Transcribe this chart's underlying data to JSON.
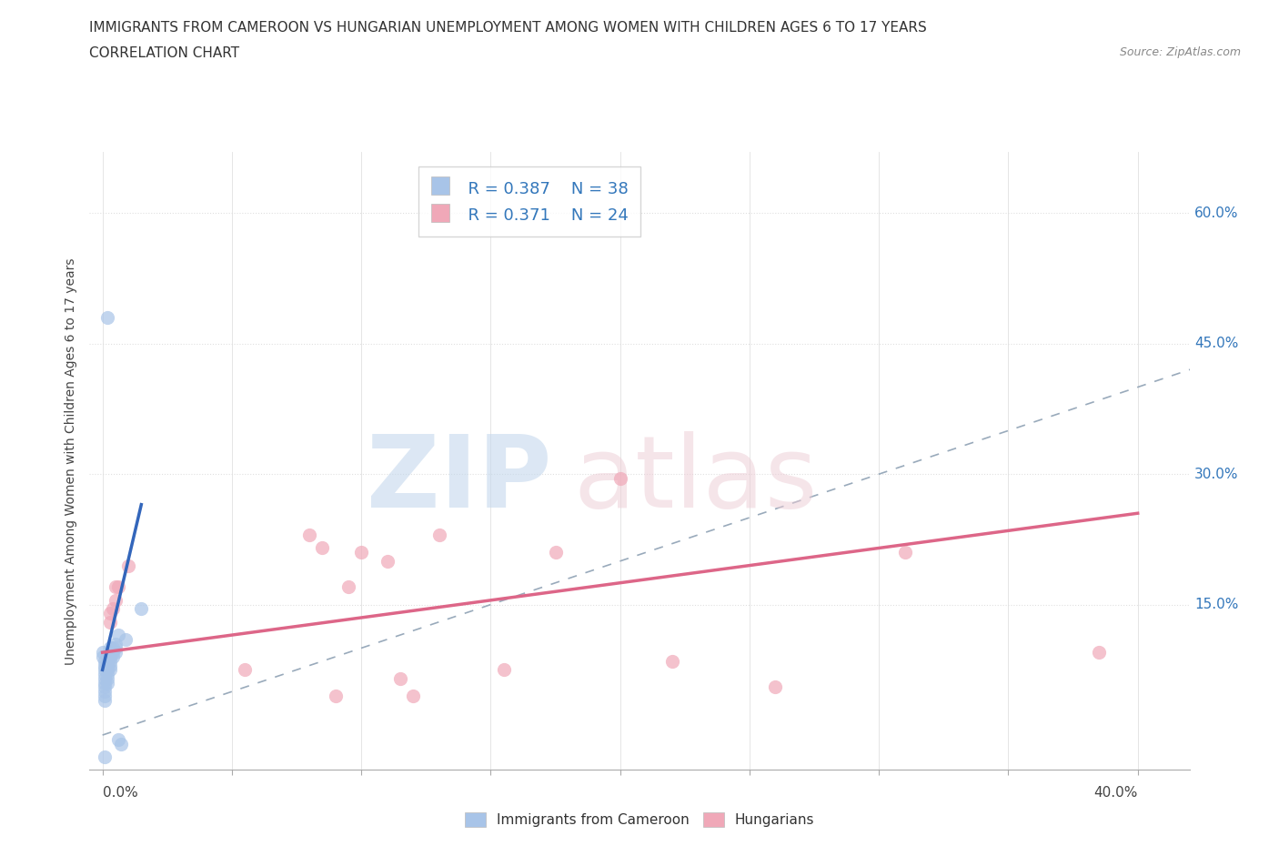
{
  "title_line1": "IMMIGRANTS FROM CAMEROON VS HUNGARIAN UNEMPLOYMENT AMONG WOMEN WITH CHILDREN AGES 6 TO 17 YEARS",
  "title_line2": "CORRELATION CHART",
  "source_text": "Source: ZipAtlas.com",
  "ylabel": "Unemployment Among Women with Children Ages 6 to 17 years",
  "xlim": [
    -0.005,
    0.42
  ],
  "ylim": [
    -0.04,
    0.67
  ],
  "xticks": [
    0.0,
    0.05,
    0.1,
    0.15,
    0.2,
    0.25,
    0.3,
    0.35,
    0.4
  ],
  "yticks_right": [
    0.0,
    0.15,
    0.3,
    0.45,
    0.6
  ],
  "ytick_labels_right": [
    "",
    "15.0%",
    "30.0%",
    "45.0%",
    "60.0%"
  ],
  "legend_R1": "R = 0.387",
  "legend_N1": "N = 38",
  "legend_R2": "R = 0.371",
  "legend_N2": "N = 24",
  "color_blue": "#a8c4e8",
  "color_pink": "#f0a8b8",
  "color_blue_text": "#3377bb",
  "line_blue_color": "#3366bb",
  "line_pink_color": "#dd6688",
  "diag_line_color": "#99aabb",
  "scatter_blue": [
    [
      0.0,
      0.095
    ],
    [
      0.0,
      0.09
    ],
    [
      0.001,
      0.085
    ],
    [
      0.001,
      0.08
    ],
    [
      0.001,
      0.075
    ],
    [
      0.001,
      0.07
    ],
    [
      0.001,
      0.065
    ],
    [
      0.001,
      0.06
    ],
    [
      0.001,
      0.055
    ],
    [
      0.001,
      0.05
    ],
    [
      0.001,
      0.045
    ],
    [
      0.001,
      0.04
    ],
    [
      0.002,
      0.09
    ],
    [
      0.002,
      0.085
    ],
    [
      0.002,
      0.08
    ],
    [
      0.002,
      0.075
    ],
    [
      0.002,
      0.07
    ],
    [
      0.002,
      0.065
    ],
    [
      0.002,
      0.06
    ],
    [
      0.003,
      0.1
    ],
    [
      0.003,
      0.095
    ],
    [
      0.003,
      0.09
    ],
    [
      0.003,
      0.085
    ],
    [
      0.003,
      0.08
    ],
    [
      0.003,
      0.075
    ],
    [
      0.004,
      0.1
    ],
    [
      0.004,
      0.095
    ],
    [
      0.004,
      0.09
    ],
    [
      0.005,
      0.105
    ],
    [
      0.005,
      0.1
    ],
    [
      0.005,
      0.095
    ],
    [
      0.006,
      0.115
    ],
    [
      0.006,
      -0.005
    ],
    [
      0.007,
      -0.01
    ],
    [
      0.009,
      0.11
    ],
    [
      0.015,
      0.145
    ],
    [
      0.002,
      0.48
    ],
    [
      0.001,
      -0.025
    ]
  ],
  "scatter_pink": [
    [
      0.003,
      0.13
    ],
    [
      0.003,
      0.14
    ],
    [
      0.004,
      0.145
    ],
    [
      0.005,
      0.155
    ],
    [
      0.005,
      0.17
    ],
    [
      0.006,
      0.17
    ],
    [
      0.01,
      0.195
    ],
    [
      0.055,
      0.075
    ],
    [
      0.08,
      0.23
    ],
    [
      0.085,
      0.215
    ],
    [
      0.09,
      0.045
    ],
    [
      0.095,
      0.17
    ],
    [
      0.1,
      0.21
    ],
    [
      0.11,
      0.2
    ],
    [
      0.115,
      0.065
    ],
    [
      0.12,
      0.045
    ],
    [
      0.13,
      0.23
    ],
    [
      0.155,
      0.075
    ],
    [
      0.175,
      0.21
    ],
    [
      0.2,
      0.295
    ],
    [
      0.22,
      0.085
    ],
    [
      0.26,
      0.055
    ],
    [
      0.31,
      0.21
    ],
    [
      0.385,
      0.095
    ]
  ],
  "blue_line": [
    [
      0.0,
      0.075
    ],
    [
      0.015,
      0.265
    ]
  ],
  "pink_line": [
    [
      0.0,
      0.095
    ],
    [
      0.4,
      0.255
    ]
  ],
  "diag_line": [
    [
      0.0,
      0.0
    ],
    [
      0.62,
      0.62
    ]
  ],
  "background_color": "#ffffff",
  "grid_color": "#e0e0e0"
}
